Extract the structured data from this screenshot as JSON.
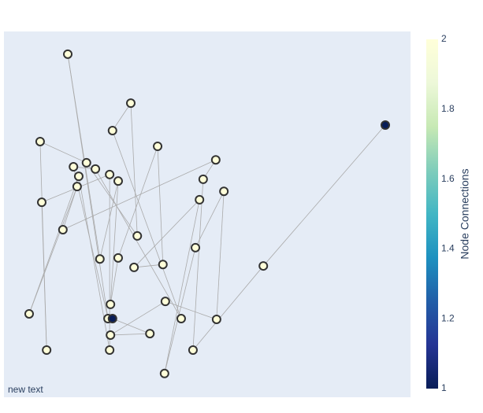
{
  "chart_data": {
    "type": "network",
    "annotation": "new text",
    "colorbar_title": "Node Connections",
    "xlim": [
      0,
      100
    ],
    "ylim": [
      0,
      100
    ],
    "x": [
      15.7,
      31.2,
      26.7,
      8.9,
      37.8,
      93.8,
      52.1,
      17.1,
      20.3,
      22.5,
      18.4,
      26.0,
      28.1,
      18.0,
      49.0,
      54.1,
      9.3,
      48.1,
      14.5,
      32.8,
      47.1,
      23.6,
      28.1,
      32.0,
      39.1,
      63.8,
      26.2,
      39.7,
      6.2,
      25.6,
      26.7,
      43.6,
      52.3,
      26.2,
      35.9,
      10.5,
      26.0,
      46.5,
      39.5
    ],
    "y": [
      93.8,
      80.4,
      72.9,
      69.9,
      68.6,
      74.4,
      64.9,
      63.0,
      64.1,
      62.4,
      60.4,
      60.9,
      59.1,
      57.6,
      59.6,
      56.3,
      53.3,
      54.0,
      45.8,
      44.1,
      40.9,
      37.8,
      38.1,
      35.5,
      36.3,
      35.9,
      25.4,
      26.2,
      22.8,
      21.5,
      21.5,
      21.5,
      21.3,
      17.0,
      17.4,
      12.9,
      12.9,
      12.9,
      6.5
    ],
    "connections": [
      2,
      2,
      2,
      2,
      2,
      1,
      2,
      2,
      2,
      2,
      2,
      2,
      2,
      2,
      2,
      2,
      2,
      2,
      2,
      2,
      2,
      2,
      2,
      2,
      2,
      2,
      2,
      2,
      2,
      2,
      1,
      2,
      2,
      2,
      2,
      2,
      2,
      2,
      2
    ],
    "edges": [
      [
        5,
        25
      ],
      [
        25,
        37
      ],
      [
        37,
        14
      ],
      [
        14,
        6
      ],
      [
        6,
        18
      ],
      [
        18,
        13
      ],
      [
        13,
        28
      ],
      [
        28,
        10
      ],
      [
        10,
        36
      ],
      [
        36,
        11
      ],
      [
        11,
        16
      ],
      [
        16,
        35
      ],
      [
        35,
        3
      ],
      [
        3,
        8
      ],
      [
        8,
        19
      ],
      [
        19,
        1
      ],
      [
        1,
        2
      ],
      [
        2,
        31
      ],
      [
        31,
        9
      ],
      [
        9,
        7
      ],
      [
        7,
        29
      ],
      [
        29,
        0
      ],
      [
        0,
        21
      ],
      [
        21,
        12
      ],
      [
        12,
        26
      ],
      [
        26,
        22
      ],
      [
        22,
        4
      ],
      [
        4,
        24
      ],
      [
        24,
        23
      ],
      [
        23,
        17
      ],
      [
        17,
        38
      ],
      [
        38,
        20
      ],
      [
        20,
        15
      ],
      [
        15,
        32
      ],
      [
        32,
        27
      ],
      [
        27,
        33
      ],
      [
        33,
        34
      ],
      [
        34,
        30
      ]
    ],
    "edge_color": "#aaaaaa",
    "marker_line_color": "#333333",
    "colorscale": [
      [
        0,
        "#081d58"
      ],
      [
        0.125,
        "#253494"
      ],
      [
        0.25,
        "#225ea8"
      ],
      [
        0.375,
        "#1d91c0"
      ],
      [
        0.5,
        "#41b6c4"
      ],
      [
        0.625,
        "#7fcdbb"
      ],
      [
        0.75,
        "#c7e9b4"
      ],
      [
        0.875,
        "#edf8d9"
      ],
      [
        1,
        "#ffffd9"
      ]
    ],
    "clim": [
      1,
      2
    ],
    "cticks": [
      1,
      1.2,
      1.4,
      1.6,
      1.8,
      2
    ]
  }
}
